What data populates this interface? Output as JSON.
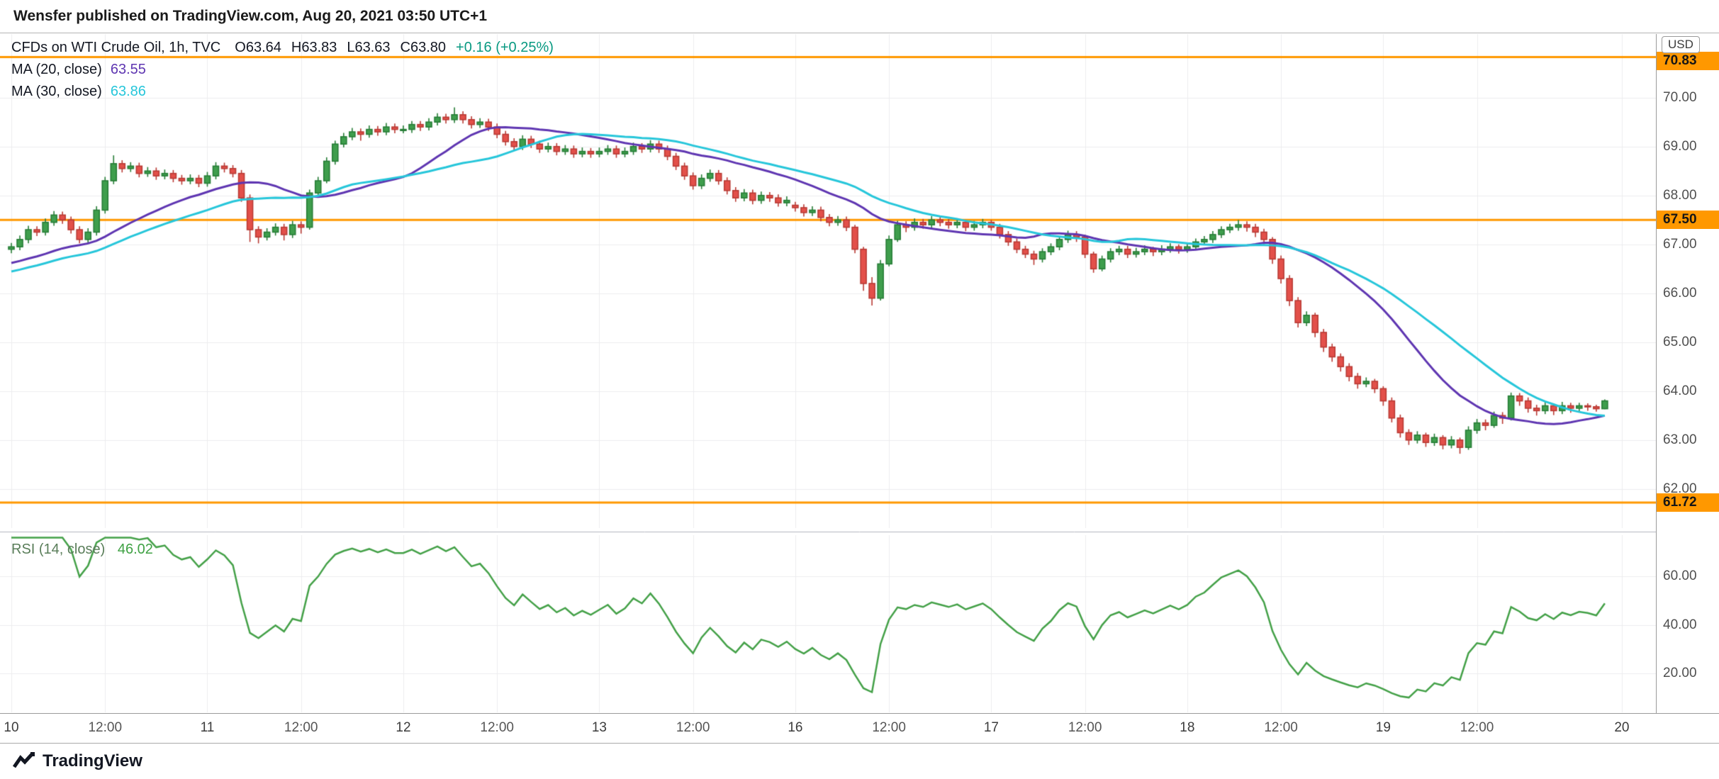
{
  "header": {
    "text": "Wensfer published on TradingView.com, Aug 20, 2021 03:50 UTC+1"
  },
  "legend": {
    "title": "CFDs on WTI Crude Oil, 1h, TVC",
    "o": "O63.64",
    "h": "H63.83",
    "l": "L63.63",
    "c": "C63.80",
    "change": "+0.16 (+0.25%)"
  },
  "ma20": {
    "label": "MA (20, close)",
    "value": "63.55"
  },
  "ma30": {
    "label": "MA (30, close)",
    "value": "63.86"
  },
  "rsi": {
    "label": "RSI (14, close)",
    "value": "46.02"
  },
  "axis": {
    "currency": "USD",
    "y_ticks": [
      "70.00",
      "69.00",
      "68.00",
      "67.00",
      "66.00",
      "65.00",
      "64.00",
      "63.00",
      "62.00"
    ],
    "rsi_ticks": [
      "60.00",
      "40.00",
      "20.00"
    ]
  },
  "footer": {
    "brand": "TradingView"
  },
  "colors": {
    "up": "#3f9e4d",
    "up_border": "#267d36",
    "down": "#e3504a",
    "down_border": "#b93a34",
    "ma20": "#5e35b1",
    "ma30": "#26c6da",
    "rsi": "#43a047",
    "level": "#ff9800",
    "grid": "#ededef",
    "change_green": "#089981"
  },
  "chart_data": {
    "type": "candlestick",
    "title": "CFDs on WTI Crude Oil, 1h, TVC",
    "interval": "1h",
    "x_slots": 193,
    "y_domain": [
      61.2,
      71.3
    ],
    "y_gridlines": [
      70,
      69,
      68,
      67,
      66,
      65,
      64,
      63,
      62
    ],
    "levels": [
      {
        "price": 70.83,
        "label": "70.83"
      },
      {
        "price": 67.5,
        "label": "67.50"
      },
      {
        "price": 61.72,
        "label": "61.72"
      }
    ],
    "overlays": [
      {
        "name": "MA20",
        "period": 20
      },
      {
        "name": "MA30",
        "period": 30
      }
    ],
    "rsi": {
      "period": 14,
      "domain": [
        4,
        77
      ],
      "gridlines": [
        60,
        40,
        20
      ]
    },
    "x_ticks": [
      {
        "label": "10",
        "i": 0
      },
      {
        "label": "12:00",
        "i": 11
      },
      {
        "label": "11",
        "i": 23
      },
      {
        "label": "12:00",
        "i": 34
      },
      {
        "label": "12",
        "i": 46
      },
      {
        "label": "12:00",
        "i": 57
      },
      {
        "label": "13",
        "i": 69
      },
      {
        "label": "12:00",
        "i": 80
      },
      {
        "label": "16",
        "i": 92
      },
      {
        "label": "12:00",
        "i": 103
      },
      {
        "label": "17",
        "i": 115
      },
      {
        "label": "12:00",
        "i": 126
      },
      {
        "label": "18",
        "i": 138
      },
      {
        "label": "12:00",
        "i": 149
      },
      {
        "label": "19",
        "i": 161
      },
      {
        "label": "12:00",
        "i": 172
      },
      {
        "label": "20",
        "i": 189
      }
    ],
    "seed_closes": [
      65.9,
      65.94,
      65.97,
      66.01,
      66.04,
      66.08,
      66.11,
      66.15,
      66.18,
      66.22,
      66.25,
      66.29,
      66.32,
      66.36,
      66.39,
      66.43,
      66.46,
      66.5,
      66.53,
      66.57,
      66.6,
      66.64,
      66.67,
      66.71,
      66.74,
      66.78,
      66.81,
      66.85,
      66.88,
      66.92
    ],
    "candles": [
      [
        66.9,
        67.03,
        66.82,
        66.95
      ],
      [
        66.95,
        67.18,
        66.88,
        67.1
      ],
      [
        67.1,
        67.38,
        67.02,
        67.3
      ],
      [
        67.3,
        67.37,
        67.17,
        67.25
      ],
      [
        67.25,
        67.53,
        67.18,
        67.45
      ],
      [
        67.45,
        67.68,
        67.38,
        67.6
      ],
      [
        67.6,
        67.67,
        67.42,
        67.5
      ],
      [
        67.5,
        67.57,
        67.22,
        67.3
      ],
      [
        67.3,
        67.37,
        67.02,
        67.1
      ],
      [
        67.1,
        67.33,
        67.03,
        67.25
      ],
      [
        67.25,
        67.78,
        67.18,
        67.7
      ],
      [
        67.7,
        68.38,
        67.63,
        68.3
      ],
      [
        68.3,
        68.82,
        68.23,
        68.65
      ],
      [
        68.65,
        68.72,
        68.47,
        68.55
      ],
      [
        68.55,
        68.68,
        68.48,
        68.6
      ],
      [
        68.6,
        68.67,
        68.37,
        68.45
      ],
      [
        68.45,
        68.58,
        68.38,
        68.5
      ],
      [
        68.5,
        68.57,
        68.32,
        68.4
      ],
      [
        68.4,
        68.53,
        68.33,
        68.45
      ],
      [
        68.45,
        68.52,
        68.27,
        68.35
      ],
      [
        68.35,
        68.42,
        68.22,
        68.3
      ],
      [
        68.3,
        68.43,
        68.23,
        68.35
      ],
      [
        68.35,
        68.42,
        68.17,
        68.25
      ],
      [
        68.25,
        68.48,
        68.18,
        68.4
      ],
      [
        68.4,
        68.68,
        68.33,
        68.6
      ],
      [
        68.6,
        68.67,
        68.47,
        68.55
      ],
      [
        68.55,
        68.62,
        68.37,
        68.45
      ],
      [
        68.45,
        68.52,
        67.87,
        67.95
      ],
      [
        67.95,
        68.02,
        67.05,
        67.3
      ],
      [
        67.3,
        67.37,
        67.02,
        67.15
      ],
      [
        67.15,
        67.33,
        67.08,
        67.25
      ],
      [
        67.25,
        67.43,
        67.18,
        67.35
      ],
      [
        67.35,
        67.42,
        67.08,
        67.2
      ],
      [
        67.2,
        67.48,
        67.13,
        67.4
      ],
      [
        67.4,
        67.47,
        67.22,
        67.35
      ],
      [
        67.35,
        68.12,
        67.3,
        68.05
      ],
      [
        68.05,
        68.38,
        67.98,
        68.3
      ],
      [
        68.3,
        68.78,
        68.25,
        68.7
      ],
      [
        68.7,
        69.12,
        68.63,
        69.05
      ],
      [
        69.05,
        69.28,
        68.98,
        69.2
      ],
      [
        69.2,
        69.38,
        69.13,
        69.3
      ],
      [
        69.3,
        69.37,
        69.12,
        69.25
      ],
      [
        69.25,
        69.43,
        69.18,
        69.35
      ],
      [
        69.35,
        69.42,
        69.22,
        69.3
      ],
      [
        69.3,
        69.48,
        69.23,
        69.4
      ],
      [
        69.4,
        69.47,
        69.27,
        69.35
      ],
      [
        69.35,
        69.43,
        69.27,
        69.35
      ],
      [
        69.35,
        69.52,
        69.28,
        69.45
      ],
      [
        69.45,
        69.52,
        69.32,
        69.4
      ],
      [
        69.4,
        69.58,
        69.33,
        69.5
      ],
      [
        69.5,
        69.68,
        69.43,
        69.6
      ],
      [
        69.6,
        69.67,
        69.47,
        69.55
      ],
      [
        69.55,
        69.8,
        69.48,
        69.65
      ],
      [
        69.65,
        69.72,
        69.47,
        69.55
      ],
      [
        69.55,
        69.62,
        69.37,
        69.45
      ],
      [
        69.45,
        69.58,
        69.38,
        69.5
      ],
      [
        69.5,
        69.57,
        69.32,
        69.4
      ],
      [
        69.4,
        69.47,
        69.17,
        69.25
      ],
      [
        69.25,
        69.32,
        69.02,
        69.1
      ],
      [
        69.1,
        69.17,
        68.92,
        69.0
      ],
      [
        69.0,
        69.23,
        68.93,
        69.15
      ],
      [
        69.15,
        69.22,
        68.97,
        69.05
      ],
      [
        69.05,
        69.12,
        68.87,
        68.95
      ],
      [
        68.95,
        69.08,
        68.88,
        69.0
      ],
      [
        69.0,
        69.07,
        68.82,
        68.9
      ],
      [
        68.9,
        69.03,
        68.83,
        68.95
      ],
      [
        68.95,
        69.02,
        68.77,
        68.85
      ],
      [
        68.85,
        68.98,
        68.78,
        68.9
      ],
      [
        68.9,
        68.97,
        68.77,
        68.85
      ],
      [
        68.85,
        68.98,
        68.78,
        68.9
      ],
      [
        68.9,
        69.03,
        68.83,
        68.95
      ],
      [
        68.95,
        69.02,
        68.77,
        68.85
      ],
      [
        68.85,
        68.98,
        68.78,
        68.9
      ],
      [
        68.9,
        69.08,
        68.83,
        69.0
      ],
      [
        69.0,
        69.07,
        68.87,
        68.95
      ],
      [
        68.95,
        69.13,
        68.88,
        69.05
      ],
      [
        69.05,
        69.12,
        68.87,
        68.95
      ],
      [
        68.95,
        69.02,
        68.72,
        68.8
      ],
      [
        68.8,
        68.87,
        68.52,
        68.6
      ],
      [
        68.6,
        68.67,
        68.32,
        68.4
      ],
      [
        68.4,
        68.47,
        68.12,
        68.2
      ],
      [
        68.2,
        68.43,
        68.13,
        68.35
      ],
      [
        68.35,
        68.53,
        68.28,
        68.45
      ],
      [
        68.45,
        68.52,
        68.22,
        68.3
      ],
      [
        68.3,
        68.37,
        68.02,
        68.1
      ],
      [
        68.1,
        68.17,
        67.87,
        67.95
      ],
      [
        67.95,
        68.13,
        67.88,
        68.05
      ],
      [
        68.05,
        68.12,
        67.82,
        67.9
      ],
      [
        67.9,
        68.08,
        67.83,
        68.0
      ],
      [
        68.0,
        68.07,
        67.87,
        67.95
      ],
      [
        67.95,
        68.02,
        67.77,
        67.85
      ],
      [
        67.85,
        67.98,
        67.78,
        67.9
      ],
      [
        67.8,
        67.87,
        67.67,
        67.75
      ],
      [
        67.75,
        67.82,
        67.57,
        67.65
      ],
      [
        67.65,
        67.78,
        67.58,
        67.7
      ],
      [
        67.7,
        67.77,
        67.47,
        67.55
      ],
      [
        67.55,
        67.62,
        67.37,
        67.45
      ],
      [
        67.45,
        67.58,
        67.38,
        67.5
      ],
      [
        67.5,
        67.57,
        67.27,
        67.35
      ],
      [
        67.35,
        67.4,
        66.82,
        66.9
      ],
      [
        66.9,
        66.95,
        66.05,
        66.2
      ],
      [
        66.2,
        66.33,
        65.75,
        65.9
      ],
      [
        65.9,
        66.68,
        65.85,
        66.6
      ],
      [
        66.6,
        67.18,
        66.55,
        67.1
      ],
      [
        67.1,
        67.48,
        67.05,
        67.4
      ],
      [
        67.4,
        67.47,
        67.25,
        67.35
      ],
      [
        67.35,
        67.53,
        67.28,
        67.45
      ],
      [
        67.45,
        67.52,
        67.32,
        67.4
      ],
      [
        67.4,
        67.58,
        67.33,
        67.5
      ],
      [
        67.5,
        67.57,
        67.37,
        67.45
      ],
      [
        67.45,
        67.52,
        67.32,
        67.4
      ],
      [
        67.4,
        67.53,
        67.33,
        67.45
      ],
      [
        67.45,
        67.5,
        67.27,
        67.35
      ],
      [
        67.35,
        67.48,
        67.28,
        67.4
      ],
      [
        67.4,
        67.52,
        67.33,
        67.45
      ],
      [
        67.45,
        67.5,
        67.28,
        67.35
      ],
      [
        67.35,
        67.42,
        67.12,
        67.2
      ],
      [
        67.2,
        67.27,
        66.97,
        67.05
      ],
      [
        67.05,
        67.12,
        66.82,
        66.9
      ],
      [
        66.9,
        66.97,
        66.72,
        66.8
      ],
      [
        66.8,
        66.87,
        66.58,
        66.7
      ],
      [
        66.7,
        66.92,
        66.63,
        66.85
      ],
      [
        66.85,
        67.02,
        66.78,
        66.95
      ],
      [
        66.95,
        67.17,
        66.88,
        67.1
      ],
      [
        67.1,
        67.28,
        67.03,
        67.2
      ],
      [
        67.2,
        67.27,
        67.05,
        67.15
      ],
      [
        67.15,
        67.2,
        66.72,
        66.8
      ],
      [
        66.8,
        66.85,
        66.42,
        66.5
      ],
      [
        66.5,
        66.77,
        66.45,
        66.7
      ],
      [
        66.7,
        66.92,
        66.63,
        66.85
      ],
      [
        66.85,
        66.97,
        66.78,
        66.9
      ],
      [
        66.9,
        66.97,
        66.72,
        66.8
      ],
      [
        66.8,
        66.93,
        66.73,
        66.85
      ],
      [
        66.85,
        66.98,
        66.78,
        66.9
      ],
      [
        66.9,
        66.95,
        66.76,
        66.85
      ],
      [
        66.85,
        66.98,
        66.78,
        66.9
      ],
      [
        66.9,
        67.02,
        66.83,
        66.95
      ],
      [
        66.95,
        67.0,
        66.81,
        66.9
      ],
      [
        66.9,
        67.02,
        66.83,
        66.95
      ],
      [
        66.95,
        67.12,
        66.88,
        67.05
      ],
      [
        67.05,
        67.17,
        66.98,
        67.1
      ],
      [
        67.1,
        67.27,
        67.03,
        67.2
      ],
      [
        67.2,
        67.37,
        67.13,
        67.3
      ],
      [
        67.3,
        67.42,
        67.23,
        67.35
      ],
      [
        67.35,
        67.5,
        67.28,
        67.4
      ],
      [
        67.4,
        67.47,
        67.26,
        67.35
      ],
      [
        67.35,
        67.42,
        67.15,
        67.25
      ],
      [
        67.25,
        67.32,
        67.0,
        67.1
      ],
      [
        67.1,
        67.15,
        66.6,
        66.7
      ],
      [
        66.7,
        66.77,
        66.2,
        66.3
      ],
      [
        66.3,
        66.37,
        65.74,
        65.85
      ],
      [
        65.85,
        65.92,
        65.3,
        65.4
      ],
      [
        65.4,
        65.63,
        65.33,
        65.55
      ],
      [
        65.55,
        65.6,
        65.1,
        65.2
      ],
      [
        65.2,
        65.27,
        64.8,
        64.9
      ],
      [
        64.9,
        64.97,
        64.6,
        64.7
      ],
      [
        64.7,
        64.77,
        64.4,
        64.5
      ],
      [
        64.5,
        64.57,
        64.2,
        64.3
      ],
      [
        64.3,
        64.37,
        64.05,
        64.15
      ],
      [
        64.15,
        64.28,
        64.08,
        64.2
      ],
      [
        64.2,
        64.25,
        63.96,
        64.05
      ],
      [
        64.05,
        64.1,
        63.7,
        63.8
      ],
      [
        63.8,
        63.87,
        63.36,
        63.45
      ],
      [
        63.45,
        63.52,
        63.05,
        63.15
      ],
      [
        63.15,
        63.22,
        62.9,
        63.0
      ],
      [
        63.0,
        63.18,
        62.93,
        63.1
      ],
      [
        63.1,
        63.15,
        62.86,
        62.95
      ],
      [
        62.95,
        63.13,
        62.88,
        63.05
      ],
      [
        63.05,
        63.1,
        62.81,
        62.9
      ],
      [
        62.9,
        63.08,
        62.83,
        63.0
      ],
      [
        63.0,
        63.05,
        62.72,
        62.85
      ],
      [
        62.85,
        63.28,
        62.8,
        63.2
      ],
      [
        63.2,
        63.43,
        63.13,
        63.35
      ],
      [
        63.35,
        63.42,
        63.2,
        63.3
      ],
      [
        63.3,
        63.58,
        63.25,
        63.5
      ],
      [
        63.5,
        63.57,
        63.33,
        63.45
      ],
      [
        63.45,
        63.97,
        63.4,
        63.9
      ],
      [
        63.9,
        63.96,
        63.7,
        63.8
      ],
      [
        63.8,
        63.87,
        63.56,
        63.65
      ],
      [
        63.65,
        63.72,
        63.5,
        63.6
      ],
      [
        63.6,
        63.78,
        63.53,
        63.7
      ],
      [
        63.7,
        63.75,
        63.51,
        63.6
      ],
      [
        63.6,
        63.78,
        63.53,
        63.7
      ],
      [
        63.7,
        63.76,
        63.56,
        63.65
      ],
      [
        63.65,
        63.76,
        63.58,
        63.7
      ],
      [
        63.7,
        63.75,
        63.6,
        63.68
      ],
      [
        63.68,
        63.72,
        63.58,
        63.64
      ],
      [
        63.64,
        63.83,
        63.63,
        63.8
      ]
    ]
  }
}
